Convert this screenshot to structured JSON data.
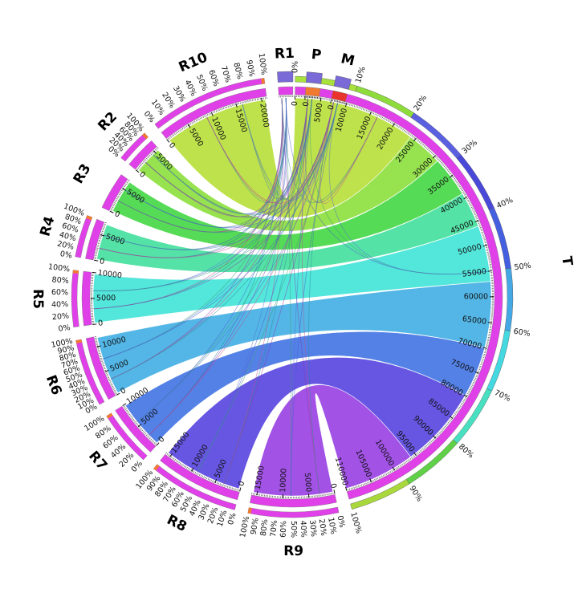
{
  "segments": [
    {
      "id": "T",
      "name": "T",
      "length": 110000,
      "span": 163.5,
      "color": "#e040e8",
      "pct_ring": true,
      "ticks": [
        0,
        5000,
        10000,
        15000,
        20000,
        25000,
        30000,
        35000,
        40000,
        45000,
        50000,
        55000,
        60000,
        65000,
        70000,
        75000,
        80000,
        85000,
        90000,
        95000,
        100000,
        105000,
        110000
      ]
    },
    {
      "id": "R9",
      "name": "R9",
      "length": 16000,
      "span": 23.8,
      "color": "#e040e8",
      "pct_ring": true,
      "ticks": [
        0,
        5000,
        10000,
        15000
      ]
    },
    {
      "id": "R8",
      "name": "R8",
      "length": 16000,
      "span": 23.8,
      "color": "#e040e8",
      "pct_ring": true,
      "ticks": [
        0,
        5000,
        10000,
        15000
      ]
    },
    {
      "id": "R7",
      "name": "R7",
      "length": 10000,
      "span": 14.9,
      "color": "#e040e8",
      "pct_ring": true,
      "ticks": [
        0,
        5000,
        10000
      ]
    },
    {
      "id": "R6",
      "name": "R6",
      "length": 12000,
      "span": 17.8,
      "color": "#e040e8",
      "pct_ring": true,
      "ticks": [
        0,
        5000,
        10000
      ]
    },
    {
      "id": "R5",
      "name": "R5",
      "length": 10000,
      "span": 14.9,
      "color": "#e040e8",
      "pct_ring": true,
      "ticks": [
        0,
        5000,
        10000
      ]
    },
    {
      "id": "R4",
      "name": "R4",
      "length": 7500,
      "span": 11.2,
      "color": "#e040e8",
      "pct_ring": true,
      "ticks": [
        0,
        5000
      ]
    },
    {
      "id": "R3",
      "name": "R3",
      "length": 7000,
      "span": 10.4,
      "color": "#e040e8",
      "pct_ring": false,
      "ticks": [
        0,
        5000
      ]
    },
    {
      "id": "R2",
      "name": "R2",
      "length": 6000,
      "span": 8.9,
      "color": "#e040e8",
      "pct_ring": true,
      "ticks": [
        0,
        5000
      ]
    },
    {
      "id": "R10",
      "name": "R10",
      "length": 21000,
      "span": 31.2,
      "color": "#e040e8",
      "pct_ring": true,
      "ticks": [
        0,
        5000,
        10000,
        15000,
        20000
      ]
    },
    {
      "id": "R1",
      "name": "R1",
      "length": 500,
      "span": 4.0,
      "color": "#e040e8",
      "pct_ring": false,
      "ticks": []
    },
    {
      "id": "P",
      "name": "P",
      "length": 500,
      "span": 4.0,
      "color": "#f07a30",
      "pct_ring": false,
      "ticks": [
        0
      ]
    },
    {
      "id": "M",
      "name": "M",
      "length": 500,
      "span": 4.0,
      "color": "#e8342a",
      "pct_ring": false,
      "ticks": [
        0
      ]
    }
  ],
  "pct_labels": [
    "0%",
    "10%",
    "20%",
    "30%",
    "40%",
    "50%",
    "60%",
    "70%",
    "80%",
    "90%",
    "100%"
  ],
  "links": [
    {
      "source": "R10",
      "target": "T",
      "t_start": 0,
      "t_end": 24000,
      "color": "#b8e03c"
    },
    {
      "source": "R2",
      "target": "T",
      "t_start": 24000,
      "t_end": 31000,
      "color": "#8ee040"
    },
    {
      "source": "R3",
      "target": "T",
      "t_start": 31000,
      "t_end": 39000,
      "color": "#48d848"
    },
    {
      "source": "R4",
      "target": "T",
      "t_start": 39000,
      "t_end": 46000,
      "color": "#46e0a0"
    },
    {
      "source": "R5",
      "target": "T",
      "t_start": 46000,
      "t_end": 57000,
      "color": "#44e4d8"
    },
    {
      "source": "R6",
      "target": "T",
      "t_start": 57000,
      "t_end": 70000,
      "color": "#44b0e4"
    },
    {
      "source": "R7",
      "target": "T",
      "t_start": 70000,
      "t_end": 80000,
      "color": "#4476e4"
    },
    {
      "source": "R8",
      "target": "T",
      "t_start": 80000,
      "t_end": 96000,
      "color": "#5a48e0"
    },
    {
      "source": "R9",
      "target": "T",
      "t_start": 96000,
      "t_end": 110000,
      "color": "#9a44e4"
    }
  ]
}
